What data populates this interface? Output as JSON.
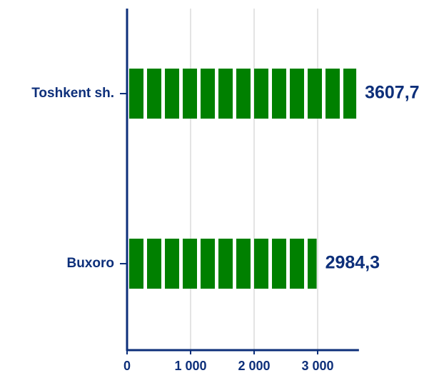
{
  "chart_data": {
    "type": "bar",
    "orientation": "horizontal",
    "categories": [
      "Toshkent sh.",
      "Buxoro"
    ],
    "values": [
      3607.7,
      2984.3
    ],
    "value_labels": [
      "3607,7",
      "2984,3"
    ],
    "color": "#008000",
    "xlim": [
      0,
      3650
    ],
    "xticks": [
      0,
      {
        "value": 1000,
        "label": "1 000"
      },
      {
        "value": 2000,
        "label": "2 000"
      },
      {
        "value": 3000,
        "label": "3 000"
      }
    ],
    "grid": true
  }
}
